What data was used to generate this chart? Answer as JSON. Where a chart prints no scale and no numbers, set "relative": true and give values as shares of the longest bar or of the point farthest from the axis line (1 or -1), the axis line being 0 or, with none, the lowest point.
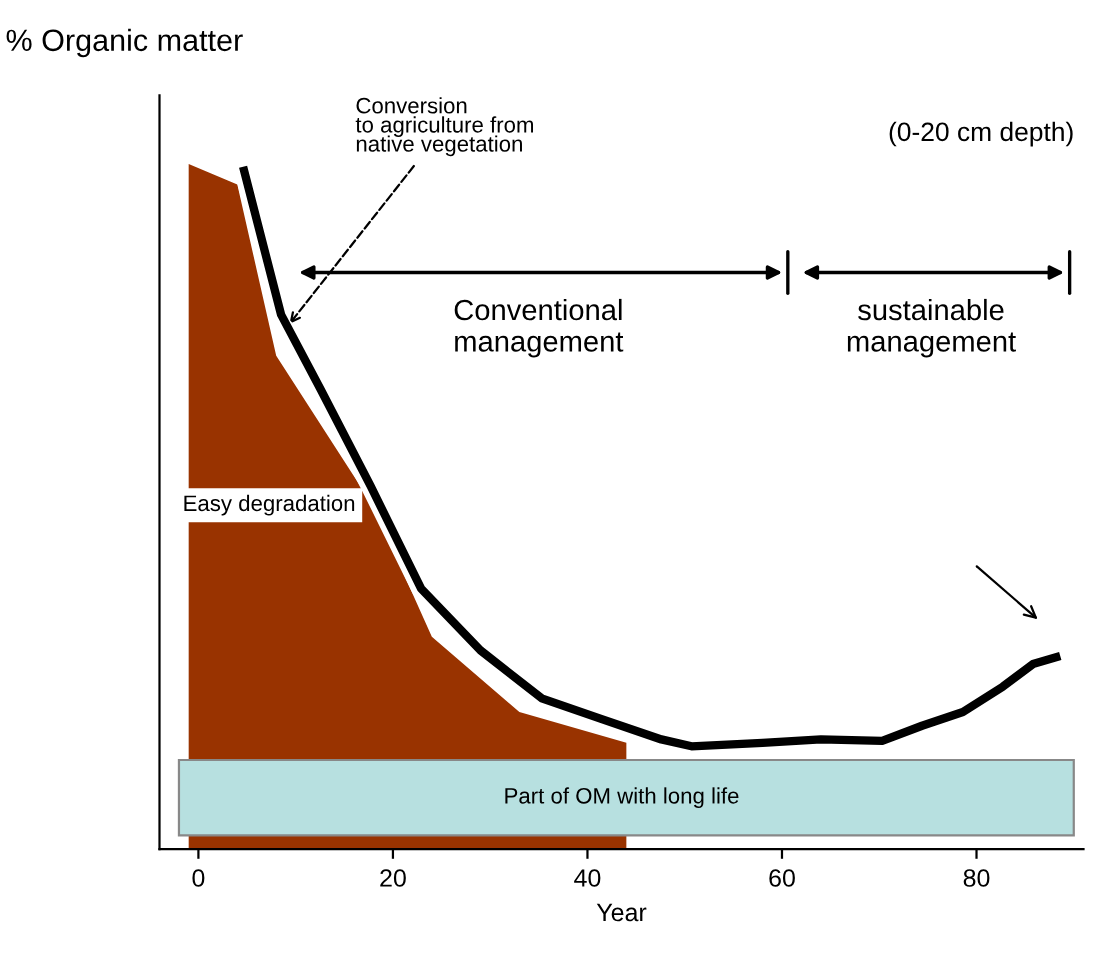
{
  "chart_data": {
    "type": "line",
    "relative": true,
    "ylabel": "% Organic matter",
    "xlabel": "Year",
    "xlim": [
      -4,
      91
    ],
    "xticks": [
      0,
      20,
      40,
      60,
      80
    ],
    "series": [
      {
        "type": "area",
        "color": "#993300",
        "x": [
          -1,
          4,
          8,
          18,
          24,
          33,
          44,
          44
        ],
        "values": [
          1.0,
          0.97,
          0.72,
          0.5,
          0.31,
          0.2,
          0.155,
          0
        ]
      },
      {
        "color": "#000000",
        "x": [
          4.7,
          8.5,
          12.6,
          17.7,
          22.9,
          29,
          35.3,
          41.4,
          47.6,
          50.7,
          58,
          64,
          70.3,
          74.4,
          78.6,
          82.7,
          85.8,
          88.2
        ],
        "values": [
          0.99,
          0.78,
          0.67,
          0.53,
          0.38,
          0.29,
          0.22,
          0.19,
          0.16,
          0.15,
          0.155,
          0.16,
          0.158,
          0.18,
          0.2,
          0.237,
          0.27,
          0.28
        ]
      }
    ],
    "bands": [
      {
        "axis": "y",
        "from": 0.02,
        "to": 0.13,
        "label": "Part of OM with long life",
        "color": "#b7e0e0"
      }
    ],
    "annotations": [
      {
        "text": "Conversion\nto agriculture from\nnative vegetation",
        "x": 9,
        "y": 0.76
      },
      "(0-20 cm depth)",
      "Easy degradation",
      "Conventional\nmanagement",
      "sustainable\nmanagement"
    ],
    "grid": false
  }
}
